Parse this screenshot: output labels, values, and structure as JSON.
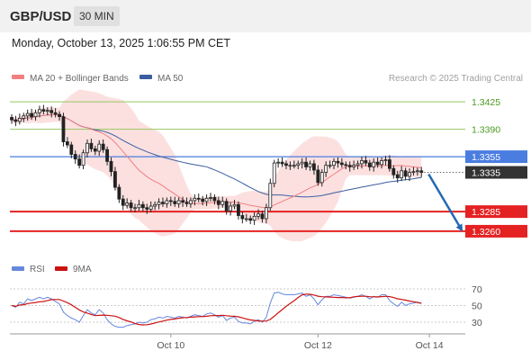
{
  "header": {
    "pair": "GBP/USD",
    "timeframe": "30 MIN"
  },
  "datetime": "Monday, October 13, 2025 1:06:55 PM CET",
  "legend": {
    "ma20": "MA 20 + Bollinger Bands",
    "ma50": "MA 50",
    "copyright": "Research © 2025 Trading Central",
    "rsi": "RSI",
    "rsi_ma": "9MA"
  },
  "colors": {
    "ma20": "#f08080",
    "ma50": "#3a5da0",
    "band": "#fbd5d5",
    "candle": "#222222",
    "support": "#e52222",
    "resistance": "#98c860",
    "pivot": "#4a7de0",
    "current": "#333333",
    "arrow": "#2468b4",
    "rsi": "#6688dd",
    "rsi_ma": "#cc1111"
  },
  "chart_data": [
    {
      "type": "candlestick",
      "title": "GBP/USD 30 MIN",
      "indicators": [
        "MA 20 + Bollinger Bands",
        "MA 50"
      ],
      "ylim": [
        1.3245,
        1.344
      ],
      "x_ticks": [
        "Oct 10",
        "Oct 12",
        "Oct 14"
      ],
      "levels": [
        {
          "value": 1.3425,
          "label": "1.3425",
          "role": "resistance"
        },
        {
          "value": 1.339,
          "label": "1.3390",
          "role": "resistance"
        },
        {
          "value": 1.3355,
          "label": "1.3355",
          "role": "pivot"
        },
        {
          "value": 1.3335,
          "label": "1.3335",
          "role": "current"
        },
        {
          "value": 1.3285,
          "label": "1.3285",
          "role": "support"
        },
        {
          "value": 1.326,
          "label": "1.3260",
          "role": "support"
        }
      ],
      "forecast": {
        "direction": "down",
        "target": 1.326
      },
      "close": [
        1.3402,
        1.34,
        1.3404,
        1.3407,
        1.341,
        1.3406,
        1.3411,
        1.3415,
        1.3413,
        1.3414,
        1.3411,
        1.3409,
        1.3406,
        1.3374,
        1.337,
        1.3358,
        1.3352,
        1.3344,
        1.336,
        1.3372,
        1.3365,
        1.3362,
        1.3371,
        1.3364,
        1.3349,
        1.3336,
        1.3316,
        1.3301,
        1.3293,
        1.3296,
        1.329,
        1.329,
        1.3294,
        1.329,
        1.3288,
        1.3292,
        1.3294,
        1.3297,
        1.3295,
        1.3299,
        1.3298,
        1.3295,
        1.3299,
        1.3297,
        1.3295,
        1.3299,
        1.3302,
        1.3301,
        1.3298,
        1.3302,
        1.3303,
        1.3299,
        1.3294,
        1.3298,
        1.3286,
        1.3292,
        1.3294,
        1.328,
        1.3276,
        1.3276,
        1.3274,
        1.3279,
        1.3282,
        1.3276,
        1.329,
        1.3321,
        1.3347,
        1.3348,
        1.3346,
        1.3344,
        1.3344,
        1.3344,
        1.3346,
        1.3348,
        1.3342,
        1.3346,
        1.3338,
        1.3322,
        1.3335,
        1.3344,
        1.3344,
        1.3349,
        1.3347,
        1.3345,
        1.3344,
        1.3342,
        1.3344,
        1.3346,
        1.335,
        1.3347,
        1.3342,
        1.3348,
        1.3345,
        1.335,
        1.3351,
        1.334,
        1.3332,
        1.3328,
        1.3337,
        1.333,
        1.3335,
        1.3336,
        1.3337,
        1.3335
      ]
    },
    {
      "type": "line",
      "title": "RSI",
      "series": [
        {
          "name": "RSI"
        },
        {
          "name": "9MA"
        }
      ],
      "ylim": [
        20,
        80
      ],
      "y_ticks": [
        30,
        50,
        70
      ],
      "values": [
        50,
        48,
        54,
        52,
        58,
        56,
        58,
        60,
        58,
        60,
        58,
        55,
        52,
        42,
        38,
        35,
        33,
        30,
        38,
        45,
        41,
        39,
        45,
        41,
        33,
        28,
        25,
        24,
        24,
        26,
        27,
        28,
        30,
        29,
        30,
        33,
        34,
        36,
        35,
        37,
        36,
        35,
        37,
        36,
        35,
        37,
        39,
        38,
        37,
        40,
        41,
        39,
        36,
        38,
        32,
        35,
        36,
        31,
        29,
        29,
        28,
        31,
        33,
        30,
        36,
        53,
        65,
        66,
        64,
        63,
        63,
        63,
        64,
        65,
        61,
        63,
        58,
        51,
        57,
        61,
        61,
        63,
        62,
        61,
        60,
        59,
        60,
        61,
        63,
        61,
        58,
        61,
        60,
        63,
        63,
        56,
        52,
        49,
        54,
        50,
        52,
        53,
        54,
        53
      ]
    }
  ]
}
